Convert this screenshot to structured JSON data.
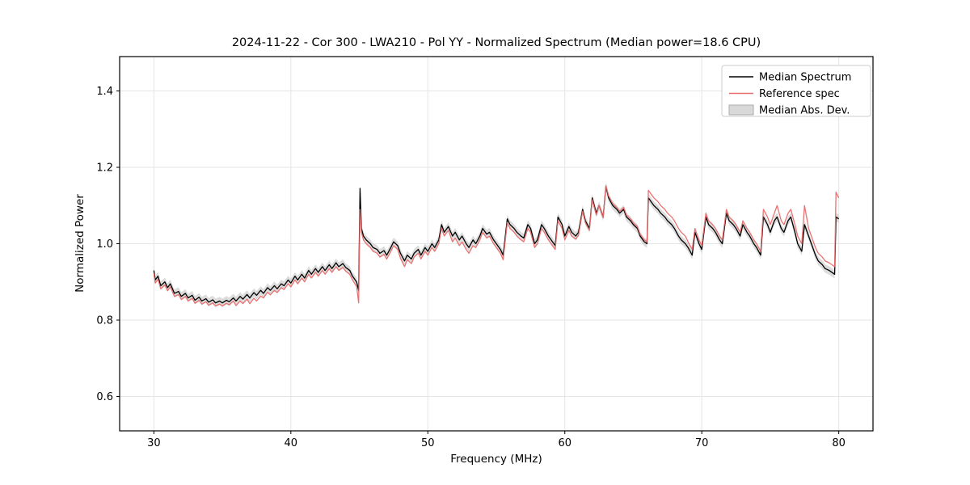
{
  "chart_data": {
    "type": "line",
    "title": "2024-11-22 - Cor 300 - LWA210 - Pol YY - Normalized Spectrum (Median power=18.6 CPU)",
    "xlabel": "Frequency (MHz)",
    "ylabel": "Normalized Power",
    "xlim": [
      27.5,
      82.5
    ],
    "ylim": [
      0.51,
      1.49
    ],
    "xticks": [
      30,
      40,
      50,
      60,
      70,
      80
    ],
    "xtick_labels": [
      "30",
      "40",
      "50",
      "60",
      "70",
      "80"
    ],
    "yticks": [
      0.6,
      0.8,
      1.0,
      1.2,
      1.4
    ],
    "ytick_labels": [
      "0.6",
      "0.8",
      "1.0",
      "1.2",
      "1.4"
    ],
    "grid": true,
    "legend_position": "upper right",
    "colors": {
      "median": "#000000",
      "reference": "#e96a6a",
      "mad_band": "#c0c0c0",
      "grid": "#e5e5e5"
    },
    "x": [
      30,
      30.1,
      30.3,
      30.5,
      30.8,
      31,
      31.2,
      31.5,
      31.8,
      32,
      32.3,
      32.5,
      32.8,
      33,
      33.3,
      33.5,
      33.8,
      34,
      34.3,
      34.5,
      34.8,
      35,
      35.3,
      35.5,
      35.8,
      36,
      36.3,
      36.5,
      36.8,
      37,
      37.3,
      37.5,
      37.8,
      38,
      38.3,
      38.5,
      38.8,
      39,
      39.3,
      39.5,
      39.8,
      40,
      40.3,
      40.5,
      40.8,
      41,
      41.3,
      41.5,
      41.8,
      42,
      42.3,
      42.5,
      42.8,
      43,
      43.3,
      43.5,
      43.8,
      44,
      44.3,
      44.5,
      44.8,
      44.95,
      45.05,
      45.15,
      45.3,
      45.5,
      45.8,
      46,
      46.3,
      46.5,
      46.8,
      47,
      47.3,
      47.5,
      47.8,
      48,
      48.3,
      48.5,
      48.8,
      49,
      49.3,
      49.5,
      49.8,
      50,
      50.3,
      50.5,
      50.8,
      51,
      51.2,
      51.5,
      51.8,
      52,
      52.3,
      52.5,
      52.8,
      53,
      53.3,
      53.5,
      53.8,
      54,
      54.3,
      54.5,
      54.8,
      55,
      55.3,
      55.5,
      55.8,
      56,
      56.3,
      56.5,
      56.8,
      57,
      57.3,
      57.5,
      57.8,
      58,
      58.3,
      58.5,
      58.8,
      59,
      59.3,
      59.5,
      59.8,
      60,
      60.3,
      60.5,
      60.8,
      61,
      61.3,
      61.5,
      61.8,
      62,
      62.3,
      62.5,
      62.8,
      63,
      63.2,
      63.5,
      63.8,
      64,
      64.3,
      64.5,
      64.8,
      65,
      65.3,
      65.5,
      65.8,
      66,
      66.1,
      66.3,
      66.5,
      66.8,
      67,
      67.3,
      67.5,
      67.8,
      68,
      68.3,
      68.5,
      68.8,
      69,
      69.3,
      69.5,
      69.8,
      70,
      70.3,
      70.5,
      70.8,
      71,
      71.3,
      71.5,
      71.8,
      72,
      72.3,
      72.5,
      72.8,
      73,
      73.3,
      73.5,
      73.8,
      74,
      74.3,
      74.5,
      74.8,
      75,
      75.3,
      75.5,
      75.8,
      76,
      76.3,
      76.5,
      76.8,
      77,
      77.3,
      77.5,
      77.8,
      78,
      78.3,
      78.5,
      78.8,
      79,
      79.3,
      79.5,
      79.7,
      79.8,
      80
    ],
    "series": [
      {
        "name": "Median Spectrum",
        "style": "line",
        "color": "#000000",
        "values": [
          0.93,
          0.905,
          0.915,
          0.89,
          0.9,
          0.885,
          0.895,
          0.87,
          0.875,
          0.862,
          0.87,
          0.858,
          0.865,
          0.852,
          0.86,
          0.85,
          0.856,
          0.847,
          0.853,
          0.845,
          0.85,
          0.845,
          0.852,
          0.848,
          0.858,
          0.85,
          0.862,
          0.855,
          0.867,
          0.858,
          0.872,
          0.865,
          0.878,
          0.87,
          0.885,
          0.878,
          0.89,
          0.882,
          0.895,
          0.89,
          0.905,
          0.897,
          0.915,
          0.905,
          0.92,
          0.91,
          0.93,
          0.92,
          0.935,
          0.925,
          0.94,
          0.93,
          0.945,
          0.935,
          0.95,
          0.94,
          0.948,
          0.938,
          0.93,
          0.915,
          0.9,
          0.878,
          1.145,
          1.04,
          1.02,
          1.01,
          1.0,
          0.99,
          0.985,
          0.975,
          0.982,
          0.97,
          0.99,
          1.005,
          0.995,
          0.975,
          0.955,
          0.97,
          0.96,
          0.975,
          0.985,
          0.97,
          0.99,
          0.98,
          1.0,
          0.99,
          1.01,
          1.05,
          1.03,
          1.045,
          1.02,
          1.03,
          1.01,
          1.02,
          1.0,
          0.99,
          1.01,
          1.0,
          1.02,
          1.04,
          1.025,
          1.03,
          1.01,
          1.0,
          0.985,
          0.97,
          1.065,
          1.05,
          1.04,
          1.03,
          1.02,
          1.015,
          1.05,
          1.04,
          1.0,
          1.01,
          1.05,
          1.04,
          1.02,
          1.01,
          0.995,
          1.07,
          1.05,
          1.02,
          1.045,
          1.03,
          1.02,
          1.03,
          1.09,
          1.06,
          1.04,
          1.12,
          1.08,
          1.1,
          1.07,
          1.15,
          1.12,
          1.1,
          1.09,
          1.08,
          1.09,
          1.07,
          1.06,
          1.05,
          1.04,
          1.02,
          1.005,
          1.0,
          1.12,
          1.11,
          1.1,
          1.09,
          1.08,
          1.07,
          1.06,
          1.05,
          1.04,
          1.02,
          1.01,
          1.0,
          0.99,
          0.97,
          1.03,
          1.0,
          0.985,
          1.07,
          1.05,
          1.04,
          1.03,
          1.01,
          1.0,
          1.08,
          1.06,
          1.05,
          1.04,
          1.02,
          1.05,
          1.03,
          1.02,
          1.0,
          0.99,
          0.97,
          1.07,
          1.05,
          1.03,
          1.06,
          1.07,
          1.04,
          1.03,
          1.06,
          1.07,
          1.03,
          1.0,
          0.98,
          1.05,
          1.02,
          1.0,
          0.97,
          0.955,
          0.945,
          0.935,
          0.93,
          0.925,
          0.92,
          1.07,
          1.065
        ]
      },
      {
        "name": "Reference spec",
        "style": "line",
        "color": "#e96a6a",
        "values": [
          0.922,
          0.897,
          0.907,
          0.882,
          0.892,
          0.877,
          0.887,
          0.862,
          0.867,
          0.854,
          0.862,
          0.85,
          0.857,
          0.844,
          0.852,
          0.842,
          0.848,
          0.839,
          0.845,
          0.837,
          0.842,
          0.837,
          0.844,
          0.84,
          0.85,
          0.838,
          0.85,
          0.843,
          0.855,
          0.843,
          0.857,
          0.85,
          0.863,
          0.858,
          0.873,
          0.866,
          0.878,
          0.872,
          0.885,
          0.88,
          0.895,
          0.887,
          0.905,
          0.895,
          0.91,
          0.9,
          0.92,
          0.91,
          0.925,
          0.915,
          0.93,
          0.92,
          0.935,
          0.925,
          0.94,
          0.93,
          0.938,
          0.928,
          0.92,
          0.905,
          0.888,
          0.845,
          1.09,
          1.03,
          1.01,
          1.0,
          0.99,
          0.98,
          0.975,
          0.965,
          0.972,
          0.96,
          0.98,
          0.995,
          0.985,
          0.962,
          0.94,
          0.958,
          0.948,
          0.965,
          0.975,
          0.96,
          0.98,
          0.97,
          0.99,
          0.98,
          1.0,
          1.04,
          1.02,
          1.035,
          1.005,
          1.015,
          0.995,
          1.005,
          0.985,
          0.975,
          0.995,
          0.99,
          1.01,
          1.03,
          1.015,
          1.02,
          1.0,
          0.99,
          0.975,
          0.958,
          1.055,
          1.04,
          1.03,
          1.02,
          1.01,
          1.005,
          1.04,
          1.03,
          0.99,
          1.0,
          1.04,
          1.03,
          1.01,
          1.0,
          0.985,
          1.06,
          1.04,
          1.01,
          1.035,
          1.02,
          1.012,
          1.022,
          1.085,
          1.055,
          1.035,
          1.115,
          1.075,
          1.1,
          1.068,
          1.152,
          1.125,
          1.105,
          1.095,
          1.085,
          1.095,
          1.075,
          1.065,
          1.055,
          1.045,
          1.025,
          1.01,
          1.005,
          1.14,
          1.13,
          1.12,
          1.11,
          1.1,
          1.09,
          1.08,
          1.07,
          1.06,
          1.04,
          1.03,
          1.02,
          1.005,
          0.985,
          1.04,
          1.01,
          0.995,
          1.08,
          1.06,
          1.05,
          1.04,
          1.02,
          1.01,
          1.09,
          1.07,
          1.06,
          1.05,
          1.03,
          1.06,
          1.04,
          1.03,
          1.01,
          1.0,
          0.98,
          1.09,
          1.07,
          1.05,
          1.08,
          1.1,
          1.06,
          1.05,
          1.08,
          1.09,
          1.05,
          1.02,
          1.0,
          1.1,
          1.04,
          1.02,
          0.99,
          0.975,
          0.965,
          0.955,
          0.95,
          0.945,
          0.94,
          1.135,
          1.12
        ]
      },
      {
        "name": "Median Abs. Dev.",
        "style": "patch",
        "color": "#c0c0c0",
        "halfwidth": 0.011
      }
    ]
  }
}
